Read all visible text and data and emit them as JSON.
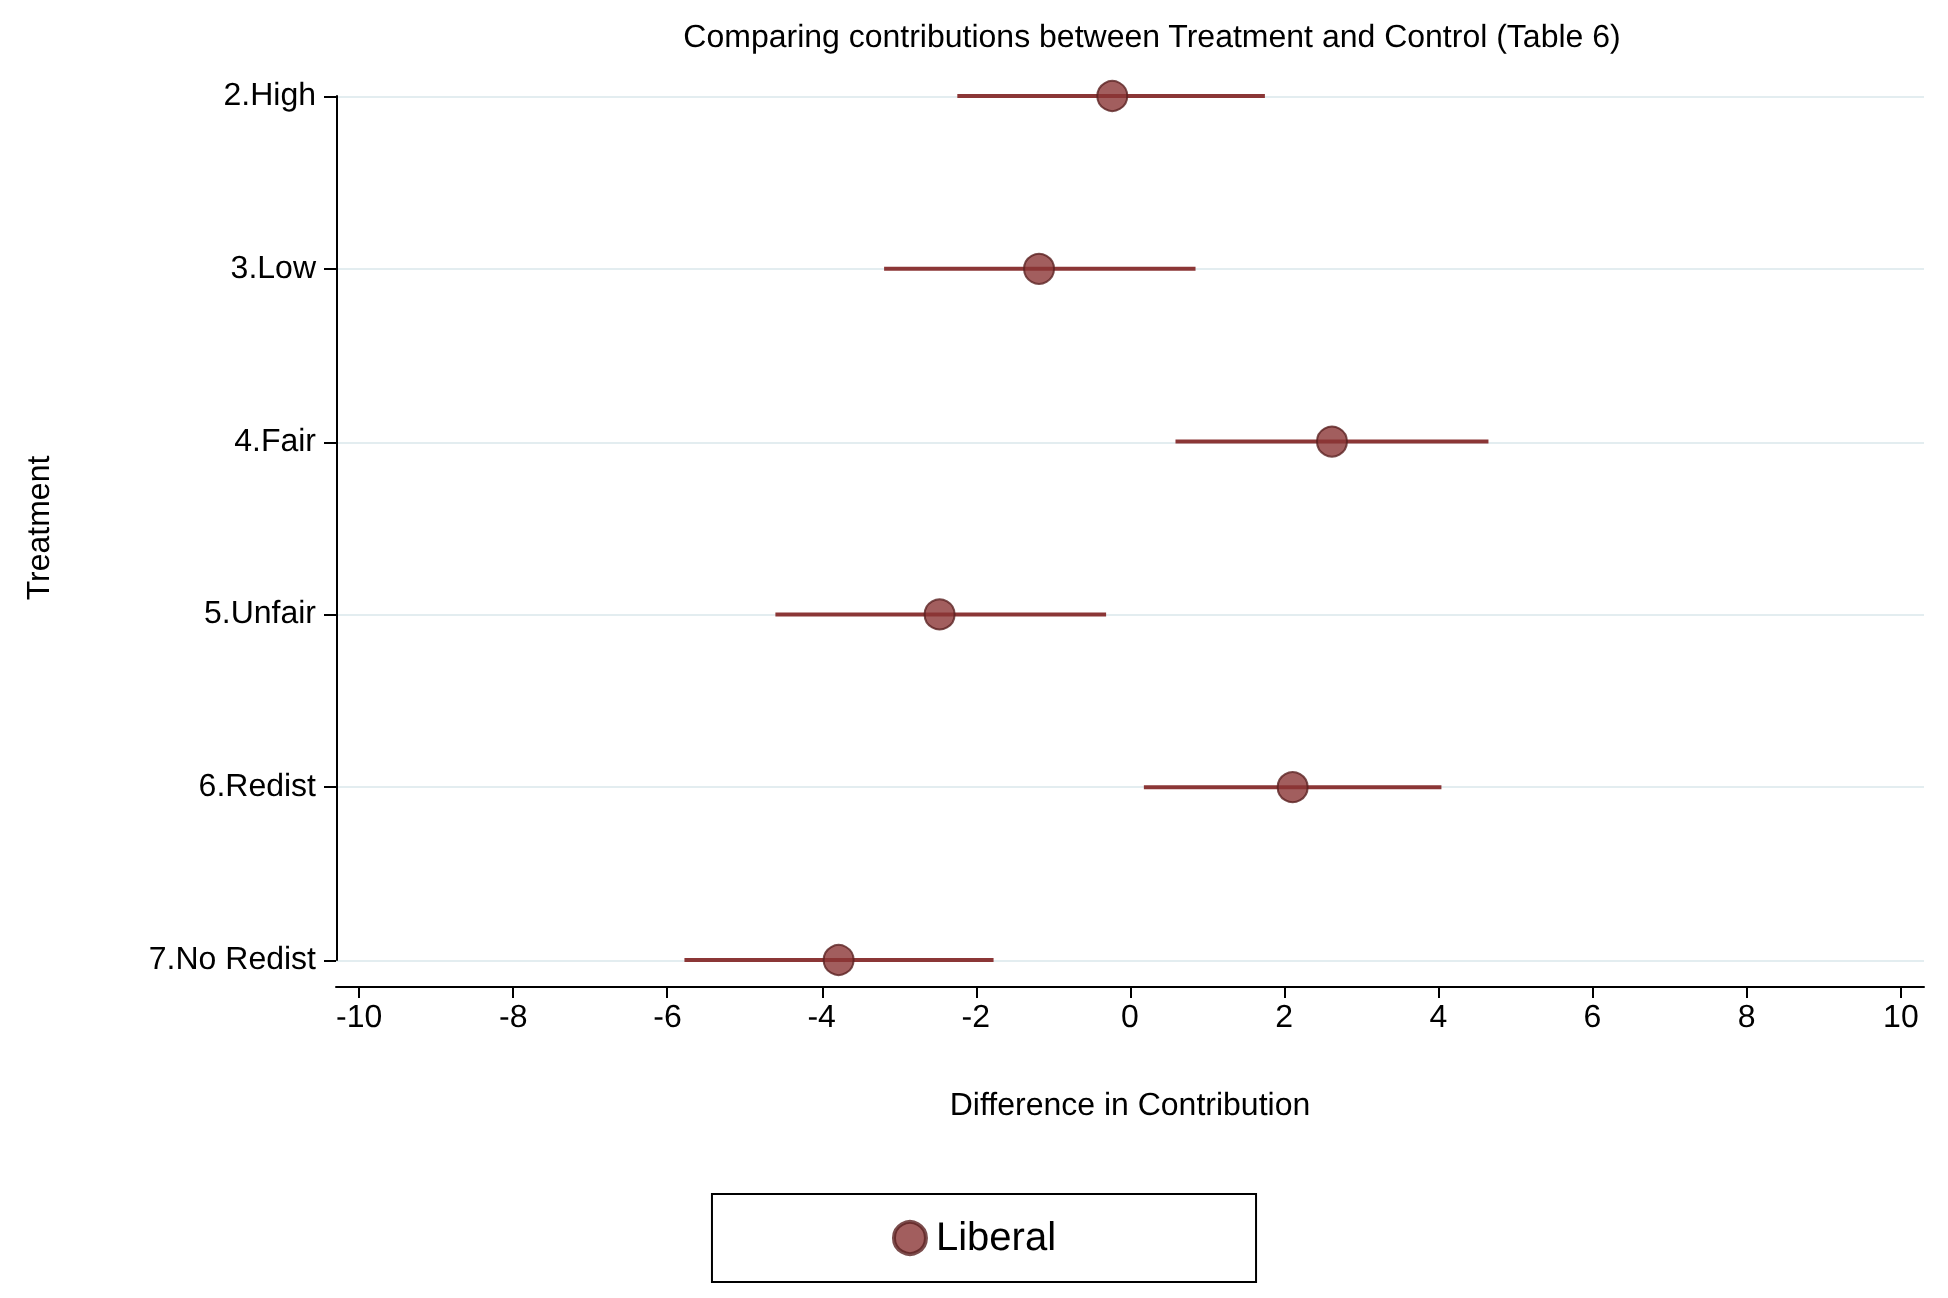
{
  "chart_data": {
    "type": "scatter",
    "title": "Comparing contributions between Treatment and Control (Table 6)",
    "xlabel": "Difference in Contribution",
    "ylabel": "Treatment",
    "orientation": "horizontal",
    "categories": [
      "2.High",
      "3.Low",
      "4.Fair",
      "5.Unfair",
      "6.Redist",
      "7.No Redist"
    ],
    "series": [
      {
        "name": "Liberal",
        "color": "#8b3636",
        "values": [
          -0.23,
          -1.18,
          2.62,
          -2.47,
          2.11,
          -3.78
        ],
        "errors": [
          [
            -2.24,
            1.75
          ],
          [
            -3.19,
            0.85
          ],
          [
            0.59,
            4.65
          ],
          [
            -4.6,
            -0.31
          ],
          [
            0.18,
            4.04
          ],
          [
            -5.78,
            -1.77
          ]
        ]
      }
    ],
    "xlim": [
      -10.3,
      10.3
    ],
    "xticks": [
      -10,
      -8,
      -6,
      -4,
      -2,
      0,
      2,
      4,
      6,
      8,
      10
    ],
    "grid": "y",
    "legend": "bottom",
    "marker": "circle"
  }
}
